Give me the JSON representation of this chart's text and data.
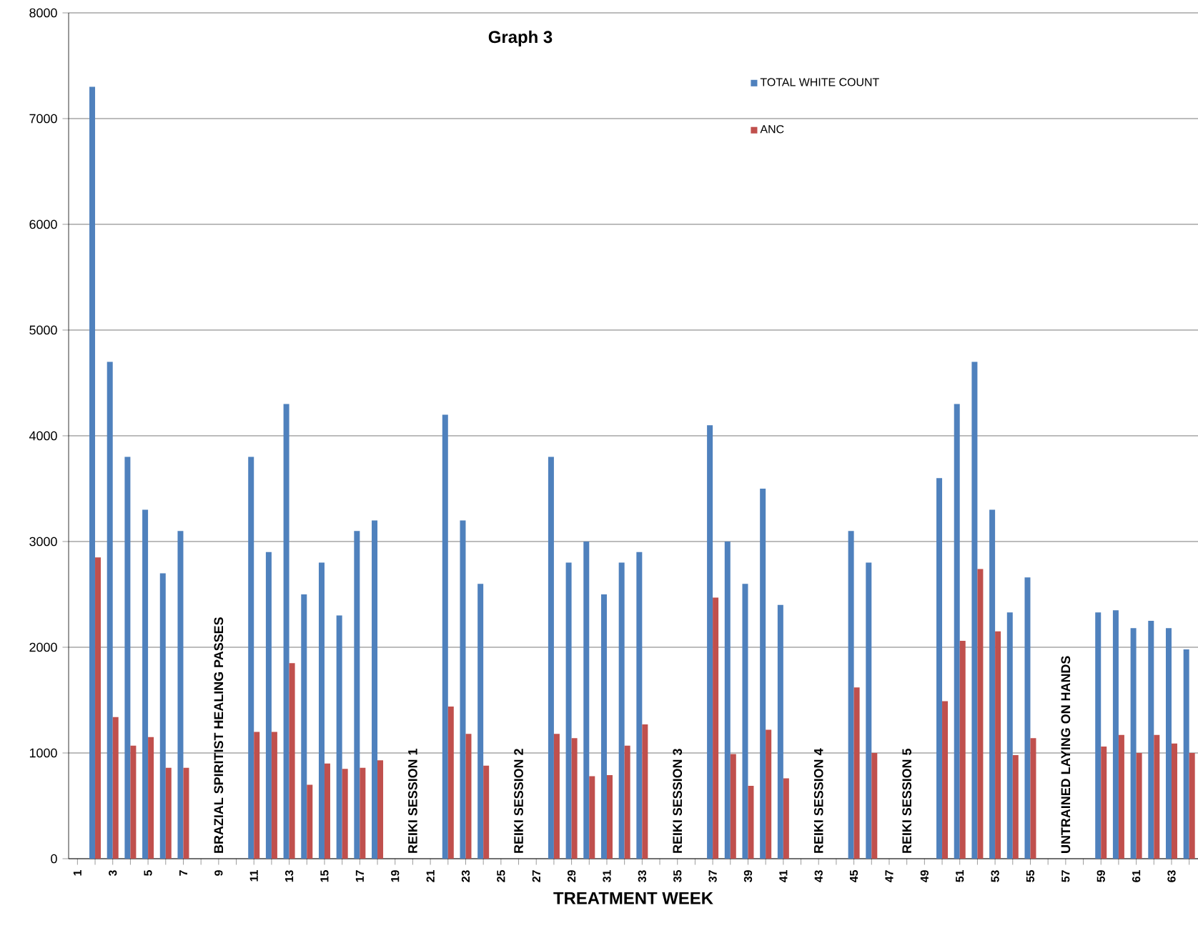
{
  "chart_data": {
    "type": "bar",
    "title": "Graph 3",
    "xlabel": "TREATMENT  WEEK",
    "categories": [
      "1",
      null,
      "3",
      null,
      "5",
      null,
      "7",
      null,
      "9",
      null,
      "11",
      null,
      "13",
      null,
      "15",
      null,
      "17",
      null,
      "19",
      null,
      "21",
      null,
      "23",
      null,
      "25",
      null,
      "27",
      null,
      "29",
      null,
      "31",
      null,
      "33",
      null,
      "35",
      null,
      "37",
      null,
      "39",
      null,
      "41",
      null,
      "43",
      null,
      "45",
      null,
      "47",
      null,
      "49",
      null,
      "51",
      null,
      "53",
      null,
      "55",
      null,
      "57",
      null,
      "59",
      null,
      "61",
      null,
      "63",
      null
    ],
    "series": [
      {
        "name": "TOTAL WHITE COUNT",
        "color": "#4f81bd",
        "values": [
          null,
          7300,
          4700,
          3800,
          3300,
          2700,
          3100,
          null,
          null,
          null,
          3800,
          2900,
          4300,
          2500,
          2800,
          2300,
          3100,
          3200,
          null,
          null,
          null,
          4200,
          3200,
          2600,
          null,
          null,
          null,
          3800,
          2800,
          3000,
          2500,
          2800,
          2900,
          null,
          null,
          null,
          4100,
          3000,
          2600,
          3500,
          2400,
          null,
          null,
          null,
          3100,
          2800,
          null,
          null,
          null,
          3600,
          4300,
          4700,
          3300,
          2330,
          2660,
          null,
          null,
          null,
          2330,
          2350,
          2180,
          2250,
          2180,
          1980
        ]
      },
      {
        "name": "ANC",
        "color": "#c0504d",
        "values": [
          null,
          2850,
          1340,
          1070,
          1150,
          860,
          860,
          null,
          null,
          null,
          1200,
          1200,
          1850,
          700,
          900,
          850,
          860,
          930,
          null,
          null,
          null,
          1440,
          1180,
          880,
          null,
          null,
          null,
          1180,
          1140,
          780,
          790,
          1070,
          1270,
          null,
          null,
          null,
          2470,
          990,
          690,
          1220,
          760,
          null,
          null,
          null,
          1620,
          1000,
          null,
          null,
          null,
          1490,
          2060,
          2740,
          2150,
          980,
          1140,
          null,
          null,
          null,
          1060,
          1170,
          1000,
          1170,
          1090,
          1000
        ]
      }
    ],
    "annotations": [
      "BRAZIAL SPIRITIST HEALING PASSES",
      "REIKI  SESSION 1",
      "REIKI SESSION 2",
      "REIKI SESSION 3",
      "REIKI SESSION 4",
      "REIKI SESSION 5",
      "UNTRAINED LAYING ON HANDS"
    ],
    "ylim": [
      0,
      8000
    ],
    "yticks": [
      0,
      1000,
      2000,
      3000,
      4000,
      5000,
      6000,
      7000,
      8000
    ],
    "grid": "y",
    "legend": "top right"
  }
}
